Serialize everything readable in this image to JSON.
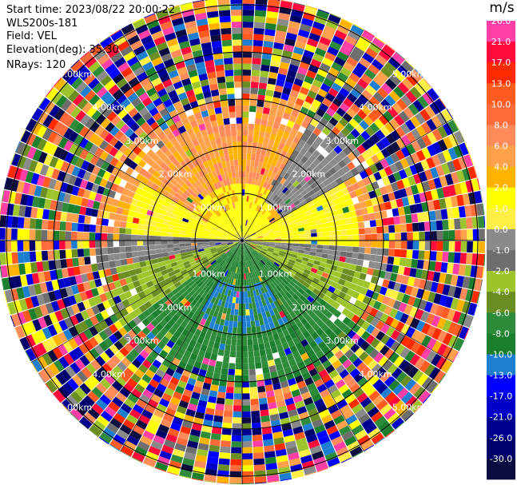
{
  "header": {
    "start_time": "Start time: 2023/08/22 20:00:22",
    "instrument": "WLS200s-181",
    "field": "Field: VEL",
    "elevation": "Elevation(deg): 35.30",
    "nrays": "NRays: 120"
  },
  "ring_labels": [
    "1.00km",
    "2.00km",
    "3.00km",
    "4.00km",
    "5.00km"
  ],
  "colorbar": {
    "unit": "m/s",
    "levels": [
      {
        "label": "26.0",
        "color": "#ff3fa6"
      },
      {
        "label": "21.0",
        "color": "#ff0a3a"
      },
      {
        "label": "17.0",
        "color": "#ff2a00"
      },
      {
        "label": "13.0",
        "color": "#ff5a1f"
      },
      {
        "label": "10.0",
        "color": "#ff6a3a"
      },
      {
        "label": "8.0",
        "color": "#ff8a5a"
      },
      {
        "label": "6.0",
        "color": "#ffa04a"
      },
      {
        "label": "4.0",
        "color": "#ffb300"
      },
      {
        "label": "2.0",
        "color": "#ffff00"
      },
      {
        "label": "1.0",
        "color": "#ffee44"
      },
      {
        "label": "0.0",
        "color": "#8a8a8a"
      },
      {
        "label": "-1.0",
        "color": "#6e6e6e"
      },
      {
        "label": "-2.0",
        "color": "#9ec42c"
      },
      {
        "label": "-4.0",
        "color": "#6b8e23"
      },
      {
        "label": "-6.0",
        "color": "#2e8b3a"
      },
      {
        "label": "-8.0",
        "color": "#1b7f2e"
      },
      {
        "label": "-10.0",
        "color": "#1e7fd0"
      },
      {
        "label": "-13.0",
        "color": "#0000ff"
      },
      {
        "label": "-17.0",
        "color": "#0000c8"
      },
      {
        "label": "-21.0",
        "color": "#000090"
      },
      {
        "label": "-26.0",
        "color": "#00006a"
      },
      {
        "label": "-30.0",
        "color": "#0c0c40"
      }
    ]
  },
  "colors": {
    "grid": "#000000",
    "label": "#ffffff"
  }
}
